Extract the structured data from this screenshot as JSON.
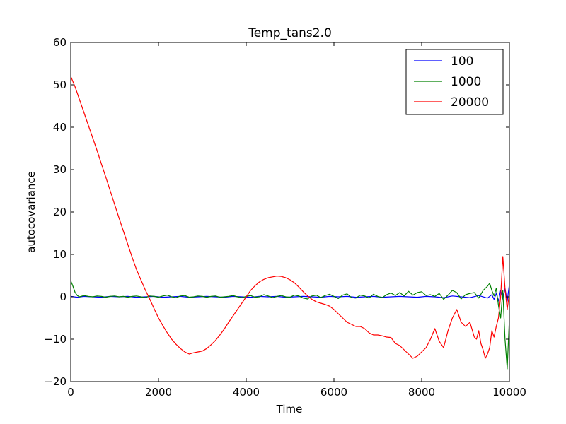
{
  "chart_data": {
    "type": "line",
    "title": "Temp_tans2.0",
    "xlabel": "Time",
    "ylabel": "autocovariance",
    "xlim": [
      0,
      10000
    ],
    "ylim": [
      -20,
      60
    ],
    "xticks": [
      0,
      2000,
      4000,
      6000,
      8000,
      10000
    ],
    "yticks": [
      -20,
      -10,
      0,
      10,
      20,
      30,
      40,
      50,
      60
    ],
    "xtick_labels": [
      "0",
      "2000",
      "4000",
      "6000",
      "8000",
      "10000"
    ],
    "ytick_labels": [
      "−20",
      "−10",
      "0",
      "10",
      "20",
      "30",
      "40",
      "50",
      "60"
    ],
    "grid": false,
    "legend_position": "top-right",
    "series": [
      {
        "name": "100",
        "color": "#0000ff",
        "x": [
          0,
          150,
          300,
          500,
          700,
          900,
          1100,
          1300,
          1500,
          1700,
          1900,
          2100,
          2300,
          2500,
          2700,
          2900,
          3100,
          3300,
          3500,
          3700,
          3900,
          4100,
          4300,
          4500,
          4700,
          4900,
          5100,
          5300,
          5500,
          5700,
          5900,
          6100,
          6300,
          6500,
          6700,
          6900,
          7100,
          7300,
          7500,
          7700,
          7900,
          8100,
          8300,
          8500,
          8700,
          8900,
          9100,
          9300,
          9500,
          9600,
          9650,
          9700,
          9750,
          9800,
          9850,
          9900,
          9950,
          10000
        ],
        "y": [
          0.1,
          -0.1,
          0.1,
          0.0,
          -0.1,
          0.1,
          0.0,
          0.1,
          -0.1,
          0.0,
          0.1,
          -0.1,
          0.0,
          0.1,
          -0.1,
          0.0,
          0.1,
          0.0,
          -0.1,
          0.1,
          0.0,
          -0.1,
          0.1,
          0.0,
          0.1,
          -0.1,
          0.0,
          0.1,
          0.0,
          -0.1,
          0.1,
          0.0,
          0.1,
          -0.1,
          0.0,
          0.1,
          -0.1,
          0.0,
          0.1,
          0.0,
          -0.1,
          0.1,
          0.0,
          -0.2,
          0.2,
          0.0,
          -0.2,
          0.3,
          -0.3,
          0.5,
          -0.6,
          0.8,
          -1.0,
          1.5,
          -0.5,
          2.0,
          -1.0,
          3.0
        ]
      },
      {
        "name": "1000",
        "color": "#008000",
        "x": [
          0,
          50,
          100,
          150,
          200,
          300,
          400,
          500,
          600,
          700,
          800,
          900,
          1000,
          1100,
          1200,
          1300,
          1400,
          1500,
          1600,
          1700,
          1800,
          1900,
          2000,
          2100,
          2200,
          2300,
          2400,
          2500,
          2600,
          2700,
          2800,
          2900,
          3000,
          3100,
          3200,
          3300,
          3400,
          3500,
          3600,
          3700,
          3800,
          3900,
          4000,
          4100,
          4200,
          4300,
          4400,
          4500,
          4600,
          4700,
          4800,
          4900,
          5000,
          5100,
          5200,
          5300,
          5400,
          5500,
          5600,
          5700,
          5800,
          5900,
          6000,
          6100,
          6200,
          6300,
          6400,
          6500,
          6600,
          6700,
          6800,
          6900,
          7000,
          7100,
          7200,
          7300,
          7400,
          7500,
          7600,
          7700,
          7800,
          7900,
          8000,
          8100,
          8200,
          8300,
          8400,
          8500,
          8600,
          8700,
          8800,
          8900,
          9000,
          9100,
          9200,
          9300,
          9400,
          9500,
          9550,
          9600,
          9650,
          9700,
          9750,
          9800,
          9850,
          9900,
          9950,
          10000
        ],
        "y": [
          3.8,
          2.5,
          1.0,
          0.3,
          0.0,
          0.3,
          0.1,
          0.0,
          0.2,
          0.1,
          -0.1,
          0.1,
          0.2,
          0.0,
          0.1,
          -0.1,
          0.1,
          0.2,
          0.0,
          -0.2,
          0.2,
          0.1,
          -0.1,
          0.2,
          0.4,
          0.0,
          -0.2,
          0.2,
          0.3,
          -0.1,
          0.0,
          0.2,
          0.1,
          -0.1,
          0.1,
          0.2,
          -0.1,
          0.0,
          0.1,
          0.3,
          0.0,
          -0.2,
          0.1,
          0.3,
          -0.1,
          0.0,
          0.5,
          0.2,
          -0.2,
          0.1,
          0.3,
          0.0,
          -0.1,
          0.4,
          0.2,
          -0.3,
          -0.5,
          0.2,
          0.4,
          -0.2,
          0.3,
          0.6,
          0.1,
          -0.4,
          0.4,
          0.7,
          -0.2,
          -0.3,
          0.4,
          0.2,
          -0.3,
          0.6,
          0.1,
          -0.2,
          0.5,
          0.9,
          0.3,
          1.0,
          0.2,
          1.3,
          0.4,
          1.0,
          1.2,
          0.3,
          0.5,
          0.1,
          0.8,
          -0.6,
          0.4,
          1.5,
          1.0,
          -0.5,
          0.5,
          0.8,
          1.0,
          -0.3,
          1.5,
          2.5,
          3.2,
          1.5,
          0.2,
          2.0,
          -2.0,
          -5.0,
          1.5,
          -10.0,
          -17.0,
          -5.0
        ]
      },
      {
        "name": "20000",
        "color": "#ff0000",
        "x": [
          0,
          100,
          200,
          300,
          400,
          500,
          600,
          700,
          800,
          900,
          1000,
          1100,
          1200,
          1300,
          1400,
          1500,
          1600,
          1700,
          1800,
          1900,
          2000,
          2100,
          2200,
          2300,
          2400,
          2500,
          2600,
          2700,
          2800,
          2900,
          3000,
          3100,
          3200,
          3300,
          3400,
          3500,
          3600,
          3700,
          3800,
          3900,
          4000,
          4100,
          4200,
          4300,
          4400,
          4500,
          4600,
          4700,
          4800,
          4900,
          5000,
          5100,
          5200,
          5300,
          5400,
          5500,
          5600,
          5700,
          5800,
          5900,
          6000,
          6100,
          6200,
          6300,
          6400,
          6500,
          6600,
          6700,
          6800,
          6900,
          7000,
          7100,
          7200,
          7300,
          7400,
          7500,
          7600,
          7700,
          7800,
          7900,
          8000,
          8100,
          8200,
          8300,
          8400,
          8500,
          8600,
          8700,
          8800,
          8900,
          9000,
          9100,
          9200,
          9250,
          9300,
          9350,
          9400,
          9450,
          9500,
          9550,
          9600,
          9650,
          9700,
          9750,
          9800,
          9850,
          9900,
          9950,
          10000
        ],
        "y": [
          52.0,
          49.5,
          46.5,
          43.5,
          40.5,
          37.5,
          34.5,
          31.3,
          28.2,
          25.0,
          21.8,
          18.6,
          15.5,
          12.4,
          9.3,
          6.4,
          4.0,
          1.6,
          -0.5,
          -2.8,
          -5.0,
          -6.8,
          -8.5,
          -10.0,
          -11.2,
          -12.2,
          -13.0,
          -13.5,
          -13.2,
          -13.0,
          -12.8,
          -12.2,
          -11.3,
          -10.3,
          -9.0,
          -7.6,
          -6.0,
          -4.5,
          -3.0,
          -1.5,
          0.0,
          1.5,
          2.6,
          3.5,
          4.1,
          4.5,
          4.7,
          4.9,
          4.8,
          4.5,
          4.0,
          3.3,
          2.3,
          1.2,
          0.2,
          -0.6,
          -1.2,
          -1.5,
          -1.8,
          -2.2,
          -3.0,
          -4.0,
          -5.0,
          -6.0,
          -6.5,
          -7.0,
          -7.0,
          -7.5,
          -8.5,
          -9.0,
          -9.0,
          -9.2,
          -9.5,
          -9.6,
          -11.0,
          -11.5,
          -12.5,
          -13.5,
          -14.5,
          -14.0,
          -13.0,
          -12.0,
          -10.0,
          -7.5,
          -10.5,
          -12.0,
          -8.0,
          -5.0,
          -3.0,
          -6.0,
          -7.0,
          -6.0,
          -9.5,
          -10.0,
          -8.0,
          -11.0,
          -12.5,
          -14.5,
          -13.5,
          -12.0,
          -8.0,
          -9.5,
          -7.0,
          -5.0,
          0.0,
          9.5,
          2.0,
          -3.0,
          1.0
        ]
      }
    ]
  }
}
